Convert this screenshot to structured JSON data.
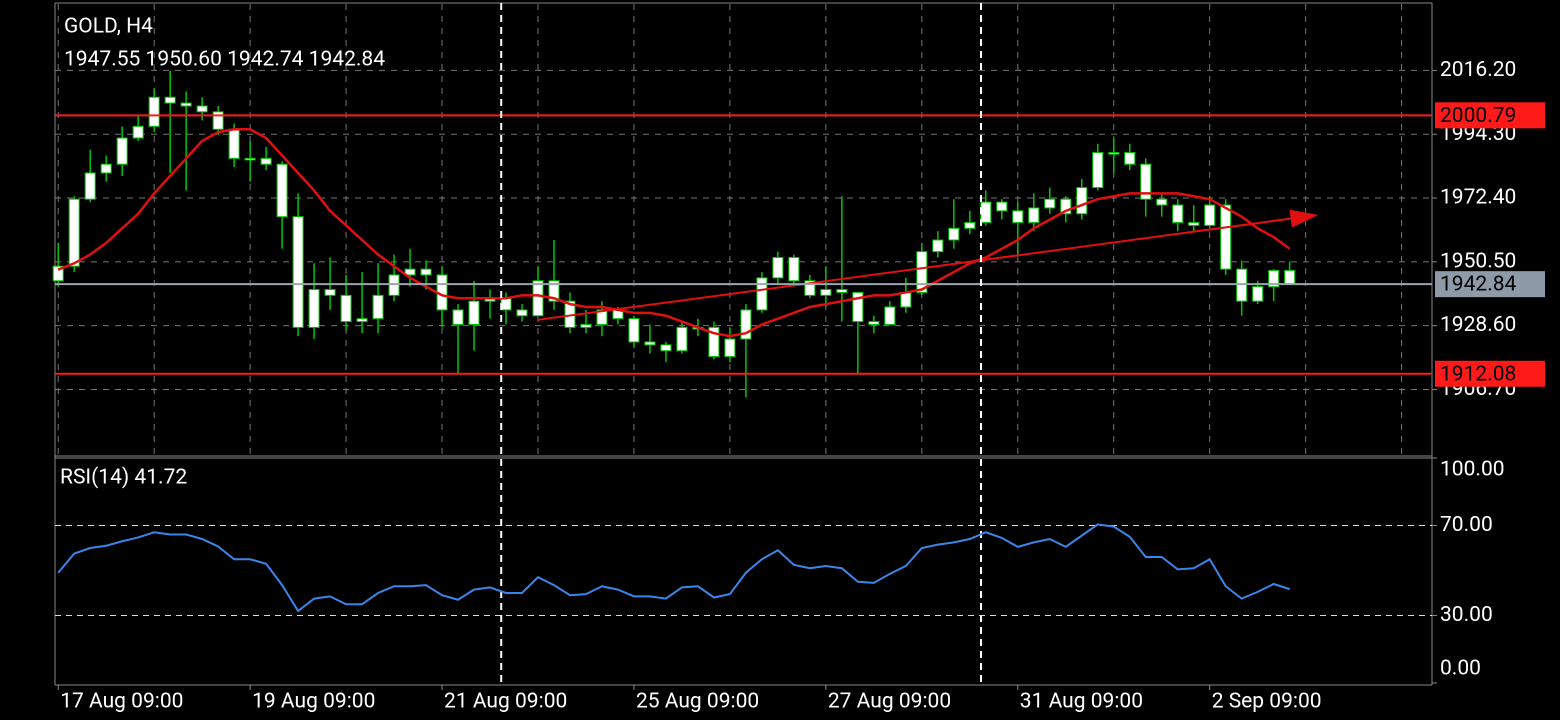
{
  "chart_data": [
    {
      "type": "candlestick",
      "title": "GOLD, H4",
      "subtitle": "1947.55 1950.60 1942.74 1942.84",
      "open": [
        1944,
        1949,
        1972,
        1981,
        1984,
        1993,
        1997,
        2007,
        2005,
        2004,
        2002,
        1996,
        1986,
        1986,
        1984,
        1966,
        1928,
        1941,
        1939,
        1930,
        1931,
        1939,
        1946,
        1948,
        1946,
        1934,
        1929,
        1937,
        1938,
        1934,
        1932,
        1944,
        1937,
        1928,
        1929,
        1934,
        1931,
        1923,
        1922,
        1920,
        1928,
        1928,
        1918,
        1924,
        1934,
        1945,
        1952,
        1944,
        1939,
        1941,
        1940,
        1930,
        1929,
        1935,
        1940,
        1954,
        1958,
        1962,
        1964,
        1971,
        1968,
        1964,
        1969,
        1972,
        1967,
        1976,
        1988,
        1988,
        1984,
        1972,
        1970,
        1964,
        1963,
        1970,
        1948,
        1937,
        1942,
        1947.55
      ],
      "high": [
        1957,
        1973,
        1989,
        1987,
        1997,
        2001,
        2010,
        2016,
        2009,
        2007,
        2004,
        1998,
        1992,
        1990,
        1985,
        1974,
        1950,
        1952,
        1946,
        1947,
        1950,
        1953,
        1955,
        1951,
        1949,
        1936,
        1944,
        1941,
        1940,
        1936,
        1949,
        1958,
        1940,
        1934,
        1937,
        1935,
        1932,
        1929,
        1923,
        1930,
        1931,
        1930,
        1928,
        1936,
        1947,
        1954,
        1953,
        1946,
        1949,
        1973,
        1940,
        1932,
        1937,
        1945,
        1957,
        1961,
        1972,
        1968,
        1975,
        1972,
        1971,
        1974,
        1976,
        1973,
        1979,
        1991,
        1993,
        1991,
        1986,
        1974,
        1972,
        1970,
        1973,
        1972,
        1951,
        1944,
        1948,
        1950.6
      ],
      "low": [
        1942,
        1947,
        1971,
        1978,
        1980,
        1992,
        1995,
        1981,
        1975,
        1999,
        1994,
        1983,
        1978,
        1982,
        1955,
        1925,
        1924,
        1934,
        1927,
        1926,
        1926,
        1937,
        1942,
        1941,
        1928,
        1912,
        1920,
        1931,
        1929,
        1930,
        1932,
        1934,
        1926,
        1926,
        1925,
        1929,
        1921,
        1919,
        1916,
        1919,
        1925,
        1917,
        1916,
        1904,
        1933,
        1943,
        1942,
        1938,
        1935,
        1930,
        1912,
        1926,
        1929,
        1933,
        1939,
        1952,
        1955,
        1960,
        1963,
        1965,
        1953,
        1961,
        1967,
        1964,
        1965,
        1975,
        1981,
        1982,
        1966,
        1966,
        1961,
        1961,
        1962,
        1946,
        1932,
        1936,
        1937,
        1942.74
      ],
      "close": [
        1949,
        1972,
        1981,
        1984,
        1993,
        1997,
        2007,
        2005,
        2004,
        2002,
        1996,
        1986,
        1986,
        1984,
        1966,
        1928,
        1941,
        1939,
        1930,
        1931,
        1939,
        1946,
        1948,
        1946,
        1934,
        1929,
        1937,
        1938,
        1934,
        1932,
        1944,
        1937,
        1928,
        1929,
        1934,
        1931,
        1923,
        1922,
        1920,
        1928,
        1928,
        1918,
        1924,
        1934,
        1945,
        1952,
        1944,
        1939,
        1941,
        1940,
        1930,
        1929,
        1935,
        1940,
        1954,
        1958,
        1962,
        1964,
        1971,
        1968,
        1964,
        1969,
        1972,
        1967,
        1976,
        1988,
        1988,
        1984,
        1972,
        1970,
        1964,
        1963,
        1970,
        1948,
        1937,
        1942,
        1947.55,
        1942.84
      ],
      "candle_color": "#ffffff",
      "wick_color": "#00c800",
      "ma": {
        "color": "#e01010",
        "values": [
          1947.8,
          1950,
          1953,
          1957,
          1962,
          1967,
          1974,
          1980,
          1986,
          1992,
          1995,
          1996,
          1996,
          1993,
          1987,
          1981,
          1975,
          1968,
          1963,
          1958,
          1953,
          1949,
          1945,
          1942,
          1939,
          1938,
          1938,
          1938,
          1938,
          1939,
          1939,
          1938,
          1936,
          1935,
          1935,
          1934,
          1933,
          1933,
          1932,
          1930,
          1928,
          1926,
          1925,
          1926,
          1929,
          1931,
          1933,
          1935,
          1936,
          1937,
          1938,
          1939,
          1939,
          1940,
          1941,
          1944,
          1947,
          1950,
          1952,
          1955,
          1958,
          1962,
          1965,
          1968,
          1970,
          1972,
          1973,
          1974,
          1974,
          1974,
          1974,
          1973,
          1972,
          1969,
          1966,
          1962,
          1959,
          1955
        ]
      },
      "trendline": {
        "x": [
          30,
          78.8
        ],
        "y": [
          1930.6,
          1966.6
        ],
        "color": "#e01010"
      },
      "levels": [
        {
          "value": 2000.79,
          "label": "2000.79",
          "color": "#ff1a1a",
          "tag_color": "#ff1a1a"
        },
        {
          "value": 1942.84,
          "label": "1942.84",
          "color": "#9aa5b1",
          "tag_color": "#8d9aa8"
        },
        {
          "value": 1912.08,
          "label": "1912.08",
          "color": "#ff1a1a",
          "tag_color": "#ff1a1a"
        }
      ],
      "vlines": [
        27.7,
        57.7
      ],
      "xlim": [
        -0.2,
        85.9
      ],
      "ylim": [
        1884.2,
        2039
      ],
      "yticks": [
        {
          "value": 2016.2,
          "label": "2016.20"
        },
        {
          "value": 1994.3,
          "label": "1994.30"
        },
        {
          "value": 1972.4,
          "label": "1972.40"
        },
        {
          "value": 1950.5,
          "label": "1950.50"
        },
        {
          "value": 1928.6,
          "label": "1928.60"
        },
        {
          "value": 1906.7,
          "label": "1906.70"
        }
      ],
      "xticks": [
        {
          "value": 0,
          "label": "17 Aug 09:00"
        },
        {
          "value": 12,
          "label": "19 Aug 09:00"
        },
        {
          "value": 24,
          "label": "21 Aug 09:00"
        },
        {
          "value": 36,
          "label": "25 Aug 09:00"
        },
        {
          "value": 48,
          "label": "27 Aug 09:00"
        },
        {
          "value": 60,
          "label": "31 Aug 09:00"
        },
        {
          "value": 72,
          "label": "2 Sep 09:00"
        }
      ],
      "xgrid": [
        0,
        6,
        12,
        18,
        24,
        30,
        36,
        42,
        48,
        54,
        60,
        66,
        72,
        78,
        84
      ],
      "grid": true
    },
    {
      "type": "line",
      "title": "RSI(14) 41.72",
      "series": [
        {
          "color": "#3a86e8",
          "values": [
            49,
            57.5,
            60,
            61,
            63,
            64.7,
            67,
            66,
            66,
            64,
            60.7,
            55,
            55,
            53,
            43.5,
            32,
            37.5,
            38.5,
            35,
            35,
            40,
            43,
            43,
            43.5,
            39,
            37,
            41.5,
            42.5,
            40,
            40,
            47,
            43.5,
            39,
            39.5,
            43,
            41.5,
            38.5,
            38.5,
            37.5,
            42.5,
            43,
            38,
            39.5,
            49,
            55,
            59,
            52.5,
            51,
            52,
            51,
            45,
            44.5,
            48.5,
            52,
            60,
            61.5,
            62.5,
            64,
            67,
            64.5,
            60.5,
            62.5,
            64,
            60.5,
            65.5,
            70.5,
            69.5,
            65,
            56,
            56,
            50.5,
            51,
            55,
            43,
            37.5,
            40.5,
            44,
            41.72
          ]
        }
      ],
      "ylim": [
        0,
        100
      ],
      "yticks": [
        {
          "value": 100,
          "label": "100.00"
        },
        {
          "value": 70,
          "label": "70.00"
        },
        {
          "value": 30,
          "label": "30.00"
        },
        {
          "value": 0,
          "label": "0.00"
        }
      ],
      "levels": [
        70,
        30
      ]
    }
  ]
}
